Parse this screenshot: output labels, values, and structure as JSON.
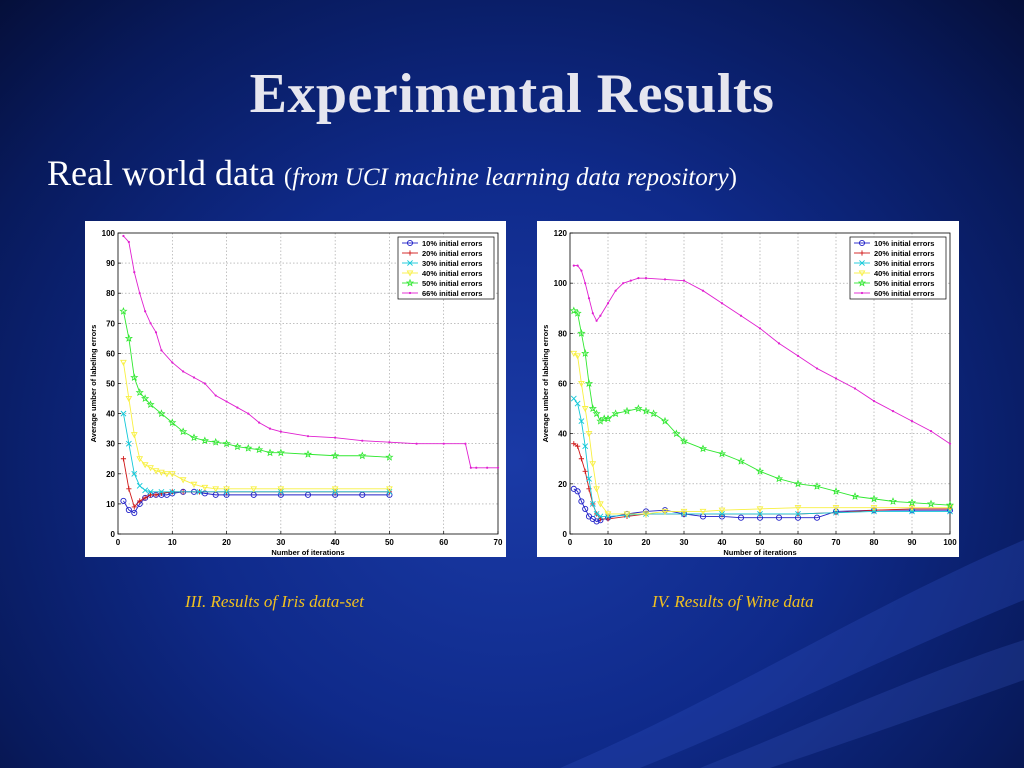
{
  "slide": {
    "title": "Experimental Results",
    "subtitle_main": "Real world data ",
    "subtitle_open": "(",
    "subtitle_italic": "from UCI machine learning data repository",
    "subtitle_close": ")"
  },
  "captions": {
    "iris": "III. Results of Iris data-set",
    "wine": "IV. Results of Wine data"
  },
  "chart_data": [
    {
      "type": "line",
      "xlabel": "Number of iterations",
      "ylabel": "Average umber of labeling errors",
      "xlim": [
        0,
        70
      ],
      "ylim": [
        0,
        100
      ],
      "xticks": [
        0,
        10,
        20,
        30,
        40,
        50,
        60,
        70
      ],
      "yticks": [
        0,
        10,
        20,
        30,
        40,
        50,
        60,
        70,
        80,
        90,
        100
      ],
      "grid": true,
      "legend": "top-right",
      "series": [
        {
          "name": "10% initial errors",
          "color": "#2020c8",
          "marker": "circle",
          "x": [
            1,
            2,
            3,
            4,
            5,
            6,
            7,
            8,
            9,
            10,
            12,
            14,
            16,
            18,
            20,
            25,
            30,
            35,
            40,
            45,
            50
          ],
          "values": [
            11,
            8,
            7,
            10,
            12,
            13,
            13,
            13,
            13,
            13.5,
            14,
            14,
            13.5,
            13,
            13,
            13,
            13,
            13,
            13,
            13,
            13
          ]
        },
        {
          "name": "20% initial errors",
          "color": "#d01818",
          "marker": "plus",
          "x": [
            1,
            2,
            3,
            4,
            5,
            6,
            7,
            8,
            10,
            12,
            15,
            20,
            30,
            40,
            50
          ],
          "values": [
            25,
            15,
            9,
            11,
            12,
            13,
            13,
            13.5,
            14,
            14,
            14,
            14,
            14,
            14,
            14
          ]
        },
        {
          "name": "30% initial errors",
          "color": "#10c8d8",
          "marker": "x",
          "x": [
            1,
            2,
            3,
            4,
            5,
            6,
            8,
            10,
            15,
            20,
            30,
            40,
            50
          ],
          "values": [
            40,
            30,
            20,
            16,
            14.5,
            14,
            14,
            14,
            14,
            14,
            14,
            14,
            14
          ]
        },
        {
          "name": "40% initial errors",
          "color": "#f8f040",
          "marker": "triangle",
          "x": [
            1,
            2,
            3,
            4,
            5,
            6,
            7,
            8,
            9,
            10,
            12,
            14,
            16,
            18,
            20,
            25,
            30,
            40,
            50
          ],
          "values": [
            57,
            45,
            33,
            25,
            23,
            22,
            21,
            20.5,
            20,
            20,
            18,
            16.5,
            15.5,
            15,
            15,
            15,
            15,
            15,
            15
          ]
        },
        {
          "name": "50% initial errors",
          "color": "#30e830",
          "marker": "star",
          "x": [
            1,
            2,
            3,
            4,
            5,
            6,
            8,
            10,
            12,
            14,
            16,
            18,
            20,
            22,
            24,
            26,
            28,
            30,
            35,
            40,
            45,
            50
          ],
          "values": [
            74,
            65,
            52,
            47,
            45,
            43,
            40,
            37,
            34,
            32,
            31,
            30.5,
            30,
            29,
            28.5,
            28,
            27,
            27,
            26.5,
            26,
            26,
            25.5
          ]
        },
        {
          "name": "66% initial errors",
          "color": "#e020d0",
          "marker": "dot",
          "x": [
            1,
            2,
            3,
            4,
            5,
            6,
            7,
            8,
            10,
            12,
            14,
            16,
            18,
            20,
            22,
            24,
            26,
            28,
            30,
            35,
            40,
            45,
            50,
            55,
            60,
            64,
            65,
            66,
            68,
            70
          ],
          "values": [
            99,
            97,
            87,
            80,
            74,
            70,
            67,
            61,
            57,
            54,
            52,
            50,
            46,
            44,
            42,
            40,
            37,
            35,
            34,
            32.5,
            32,
            31,
            30.5,
            30,
            30,
            30,
            22,
            22,
            22,
            22
          ]
        }
      ]
    },
    {
      "type": "line",
      "xlabel": "Number of iterations",
      "ylabel": "Average umber of labeling errors",
      "xlim": [
        0,
        100
      ],
      "ylim": [
        0,
        120
      ],
      "xticks": [
        0,
        10,
        20,
        30,
        40,
        50,
        60,
        70,
        80,
        90,
        100
      ],
      "yticks": [
        0,
        20,
        40,
        60,
        80,
        100,
        120
      ],
      "grid": true,
      "legend": "top-right",
      "series": [
        {
          "name": "10% initial errors",
          "color": "#2020c8",
          "marker": "circle",
          "x": [
            1,
            2,
            3,
            4,
            5,
            6,
            7,
            8,
            10,
            15,
            20,
            25,
            30,
            35,
            40,
            45,
            50,
            55,
            60,
            65,
            70,
            80,
            90,
            100
          ],
          "values": [
            18,
            17,
            13,
            10,
            7,
            6,
            5,
            5.5,
            6.5,
            8,
            9,
            9.5,
            8,
            7,
            7,
            6.5,
            6.5,
            6.5,
            6.5,
            6.5,
            9,
            9.5,
            9.5,
            9.5
          ]
        },
        {
          "name": "20% initial errors",
          "color": "#d01818",
          "marker": "plus",
          "x": [
            1,
            2,
            3,
            4,
            5,
            6,
            7,
            8,
            10,
            15,
            20,
            30,
            40,
            50,
            60,
            70,
            80,
            90,
            100
          ],
          "values": [
            36,
            35,
            30,
            25,
            18,
            12,
            8,
            6,
            6,
            7,
            8,
            8,
            8,
            8,
            8,
            8.5,
            9.5,
            10,
            10
          ]
        },
        {
          "name": "30% initial errors",
          "color": "#10c8d8",
          "marker": "x",
          "x": [
            1,
            2,
            3,
            4,
            5,
            6,
            7,
            8,
            10,
            15,
            20,
            30,
            40,
            50,
            60,
            70,
            80,
            90,
            100
          ],
          "values": [
            54,
            52,
            45,
            35,
            22,
            12,
            8,
            7,
            7,
            7.5,
            8,
            8,
            8,
            8,
            8,
            8.5,
            9,
            9,
            9
          ]
        },
        {
          "name": "40% initial errors",
          "color": "#f8f040",
          "marker": "triangle",
          "x": [
            1,
            2,
            3,
            4,
            5,
            6,
            7,
            8,
            10,
            15,
            20,
            25,
            30,
            35,
            40,
            50,
            60,
            70,
            80,
            90,
            100
          ],
          "values": [
            72,
            71,
            60,
            50,
            40,
            28,
            18,
            12,
            8,
            8,
            8,
            9,
            9,
            9,
            9.5,
            10,
            10.5,
            10.5,
            10.5,
            10.5,
            10.5
          ]
        },
        {
          "name": "50% initial errors",
          "color": "#30e830",
          "marker": "star",
          "x": [
            1,
            2,
            3,
            4,
            5,
            6,
            7,
            8,
            9,
            10,
            12,
            15,
            18,
            20,
            22,
            25,
            28,
            30,
            35,
            40,
            45,
            50,
            55,
            60,
            65,
            70,
            75,
            80,
            85,
            90,
            95,
            100
          ],
          "values": [
            89,
            88,
            80,
            72,
            60,
            50,
            48,
            45,
            46,
            46,
            48,
            49,
            50,
            49,
            48,
            45,
            40,
            37,
            34,
            32,
            29,
            25,
            22,
            20,
            19,
            17,
            15,
            14,
            13,
            12.5,
            12,
            11.5
          ]
        },
        {
          "name": "60% initial errors",
          "color": "#e020d0",
          "marker": "dot",
          "x": [
            1,
            2,
            3,
            4,
            5,
            6,
            7,
            8,
            10,
            12,
            14,
            16,
            18,
            20,
            25,
            30,
            35,
            40,
            45,
            50,
            55,
            60,
            65,
            70,
            75,
            80,
            85,
            90,
            95,
            100
          ],
          "values": [
            107,
            107,
            105,
            100,
            94,
            88,
            85,
            87,
            92,
            97,
            100,
            101,
            102,
            102,
            101.5,
            101,
            97,
            92,
            87,
            82,
            76,
            71,
            66,
            62,
            58,
            53,
            49,
            45,
            41,
            36
          ]
        }
      ]
    }
  ]
}
